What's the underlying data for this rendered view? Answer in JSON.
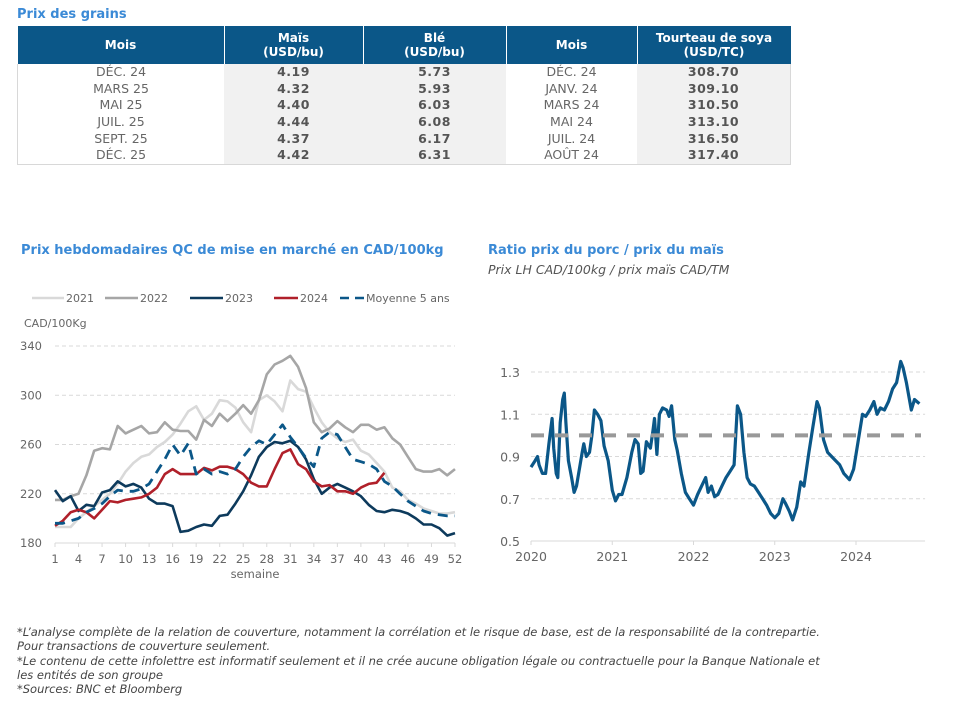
{
  "grains": {
    "title": "Prix des grains",
    "headers": [
      "Mois",
      "Maïs\n(USD/bu)",
      "Blé\n(USD/bu)",
      "Mois",
      "Tourteau de soya\n(USD/TC)"
    ],
    "header_lines": [
      [
        "Mois"
      ],
      [
        "Maïs",
        "(USD/bu)"
      ],
      [
        "Blé",
        "(USD/bu)"
      ],
      [
        "Mois"
      ],
      [
        "Tourteau de soya",
        "(USD/TC)"
      ]
    ],
    "rows": [
      {
        "mois": "DÉC. 24",
        "mais": "4.19",
        "ble": "5.73",
        "mois2": "DÉC. 24",
        "soya": "308.70"
      },
      {
        "mois": "MARS 25",
        "mais": "4.32",
        "ble": "5.93",
        "mois2": "JANV. 24",
        "soya": "309.10"
      },
      {
        "mois": "MAI 25",
        "mais": "4.40",
        "ble": "6.03",
        "mois2": "MARS 24",
        "soya": "310.50"
      },
      {
        "mois": "JUIL. 25",
        "mais": "4.44",
        "ble": "6.08",
        "mois2": "MAI 24",
        "soya": "313.10"
      },
      {
        "mois": "SEPT. 25",
        "mais": "4.37",
        "ble": "6.17",
        "mois2": "JUIL. 24",
        "soya": "316.50"
      },
      {
        "mois": "DÉC. 25",
        "mais": "4.42",
        "ble": "6.31",
        "mois2": "AOÛT 24",
        "soya": "317.40"
      }
    ],
    "colors": {
      "header_bg": "#0b5788",
      "header_text": "#ffffff",
      "num_bg": "#f1f1f1"
    }
  },
  "chart_data": [
    {
      "type": "line",
      "title": "Prix hebdomadaires QC de mise en marché en CAD/100kg",
      "ylabel": "CAD/100Kg",
      "xlabel": "semaine",
      "ylim": [
        180,
        340
      ],
      "yticks": [
        180,
        220,
        260,
        300,
        340
      ],
      "xlim": [
        1,
        52
      ],
      "xticks": [
        1,
        4,
        7,
        10,
        13,
        16,
        19,
        22,
        25,
        28,
        31,
        34,
        37,
        40,
        43,
        46,
        49,
        52
      ],
      "grid": true,
      "legend": "top",
      "series": [
        {
          "name": "2021",
          "color": "#d9d9d9",
          "dash": false,
          "values": [
            193,
            193,
            193,
            200,
            205,
            210,
            215,
            220,
            228,
            238,
            245,
            250,
            252,
            258,
            262,
            268,
            277,
            287,
            291,
            280,
            285,
            296,
            295,
            290,
            278,
            270,
            296,
            300,
            295,
            287,
            312,
            305,
            303,
            290,
            278,
            270,
            265,
            262,
            264,
            255,
            252,
            245,
            238,
            225,
            222,
            215,
            212,
            208,
            206,
            204,
            204,
            205
          ]
        },
        {
          "name": "2022",
          "color": "#a6a6a6",
          "dash": false,
          "values": [
            215,
            215,
            218,
            220,
            235,
            255,
            257,
            256,
            275,
            269,
            272,
            275,
            269,
            270,
            278,
            272,
            271,
            271,
            264,
            280,
            275,
            285,
            279,
            285,
            292,
            285,
            296,
            317,
            325,
            328,
            332,
            323,
            306,
            278,
            270,
            273,
            279,
            274,
            270,
            276,
            276,
            272,
            274,
            265,
            260,
            250,
            240,
            238,
            238,
            240,
            235,
            240
          ]
        },
        {
          "name": "2023",
          "color": "#0d3a5c",
          "dash": false,
          "values": [
            223,
            214,
            218,
            206,
            211,
            210,
            221,
            223,
            230,
            226,
            228,
            225,
            216,
            212,
            212,
            210,
            189,
            190,
            193,
            195,
            194,
            202,
            203,
            212,
            222,
            235,
            250,
            258,
            262,
            261,
            263,
            258,
            248,
            232,
            220,
            225,
            228,
            225,
            222,
            218,
            211,
            206,
            205,
            207,
            206,
            204,
            200,
            195,
            195,
            192,
            186,
            188
          ]
        },
        {
          "name": "2024",
          "color": "#b0202a",
          "dash": false,
          "values": [
            194,
            198,
            205,
            207,
            205,
            200,
            207,
            214,
            213,
            215,
            216,
            217,
            220,
            225,
            236,
            240,
            236,
            236,
            236,
            241,
            239,
            242,
            242,
            240,
            236,
            229,
            226,
            226,
            240,
            253,
            256,
            244,
            240,
            230,
            226,
            227,
            222,
            222,
            220,
            225,
            228,
            229,
            237
          ]
        },
        {
          "name": "Moyenne 5 ans",
          "color": "#0b5788",
          "dash": true,
          "values": [
            196,
            196,
            198,
            200,
            205,
            208,
            212,
            218,
            223,
            222,
            222,
            224,
            228,
            238,
            248,
            260,
            251,
            261,
            236,
            240,
            236,
            238,
            236,
            240,
            250,
            258,
            263,
            260,
            268,
            276,
            266,
            258,
            249,
            242,
            265,
            270,
            268,
            258,
            248,
            246,
            244,
            240,
            230,
            226,
            220,
            214,
            210,
            206,
            204,
            203,
            202,
            202
          ]
        }
      ]
    },
    {
      "type": "line",
      "title": "Ratio prix du porc / prix du maïs",
      "subtitle": "Prix LH CAD/100kg / prix maïs CAD/TM",
      "ylim": [
        0.5,
        1.4
      ],
      "yticks": [
        0.5,
        0.7,
        0.9,
        1.1,
        1.3
      ],
      "xlim": [
        2020.0,
        2024.85
      ],
      "xticks": [
        2020,
        2021,
        2022,
        2023,
        2024
      ],
      "grid": true,
      "series": [
        {
          "name": "Ratio",
          "color": "#0b5788",
          "dash": false,
          "points": [
            [
              2020.0,
              0.85
            ],
            [
              2020.05,
              0.88
            ],
            [
              2020.08,
              0.9
            ],
            [
              2020.1,
              0.86
            ],
            [
              2020.14,
              0.82
            ],
            [
              2020.18,
              0.82
            ],
            [
              2020.22,
              0.96
            ],
            [
              2020.26,
              1.08
            ],
            [
              2020.28,
              0.94
            ],
            [
              2020.31,
              0.82
            ],
            [
              2020.33,
              0.8
            ],
            [
              2020.36,
              1.06
            ],
            [
              2020.39,
              1.17
            ],
            [
              2020.41,
              1.2
            ],
            [
              2020.43,
              1.06
            ],
            [
              2020.46,
              0.88
            ],
            [
              2020.5,
              0.8
            ],
            [
              2020.53,
              0.73
            ],
            [
              2020.56,
              0.76
            ],
            [
              2020.6,
              0.85
            ],
            [
              2020.63,
              0.92
            ],
            [
              2020.65,
              0.96
            ],
            [
              2020.68,
              0.9
            ],
            [
              2020.72,
              0.92
            ],
            [
              2020.75,
              1.0
            ],
            [
              2020.78,
              1.12
            ],
            [
              2020.82,
              1.1
            ],
            [
              2020.86,
              1.07
            ],
            [
              2020.9,
              0.95
            ],
            [
              2020.95,
              0.88
            ],
            [
              2021.0,
              0.74
            ],
            [
              2021.04,
              0.69
            ],
            [
              2021.08,
              0.72
            ],
            [
              2021.12,
              0.72
            ],
            [
              2021.18,
              0.8
            ],
            [
              2021.24,
              0.92
            ],
            [
              2021.28,
              0.98
            ],
            [
              2021.32,
              0.96
            ],
            [
              2021.35,
              0.82
            ],
            [
              2021.38,
              0.83
            ],
            [
              2021.42,
              0.97
            ],
            [
              2021.47,
              0.94
            ],
            [
              2021.5,
              1.02
            ],
            [
              2021.52,
              1.08
            ],
            [
              2021.55,
              0.91
            ],
            [
              2021.58,
              1.1
            ],
            [
              2021.62,
              1.13
            ],
            [
              2021.67,
              1.12
            ],
            [
              2021.7,
              1.09
            ],
            [
              2021.73,
              1.14
            ],
            [
              2021.77,
              0.98
            ],
            [
              2021.8,
              0.93
            ],
            [
              2021.85,
              0.82
            ],
            [
              2021.9,
              0.73
            ],
            [
              2021.95,
              0.7
            ],
            [
              2022.0,
              0.67
            ],
            [
              2022.05,
              0.72
            ],
            [
              2022.1,
              0.76
            ],
            [
              2022.15,
              0.8
            ],
            [
              2022.18,
              0.73
            ],
            [
              2022.22,
              0.76
            ],
            [
              2022.26,
              0.71
            ],
            [
              2022.3,
              0.72
            ],
            [
              2022.35,
              0.76
            ],
            [
              2022.4,
              0.8
            ],
            [
              2022.45,
              0.83
            ],
            [
              2022.5,
              0.86
            ],
            [
              2022.54,
              1.14
            ],
            [
              2022.58,
              1.1
            ],
            [
              2022.62,
              0.92
            ],
            [
              2022.66,
              0.8
            ],
            [
              2022.7,
              0.77
            ],
            [
              2022.75,
              0.76
            ],
            [
              2022.8,
              0.73
            ],
            [
              2022.85,
              0.7
            ],
            [
              2022.9,
              0.67
            ],
            [
              2022.95,
              0.63
            ],
            [
              2023.0,
              0.61
            ],
            [
              2023.05,
              0.63
            ],
            [
              2023.1,
              0.7
            ],
            [
              2023.13,
              0.68
            ],
            [
              2023.18,
              0.64
            ],
            [
              2023.22,
              0.6
            ],
            [
              2023.27,
              0.66
            ],
            [
              2023.32,
              0.78
            ],
            [
              2023.36,
              0.76
            ],
            [
              2023.42,
              0.92
            ],
            [
              2023.47,
              1.04
            ],
            [
              2023.52,
              1.16
            ],
            [
              2023.55,
              1.13
            ],
            [
              2023.6,
              0.98
            ],
            [
              2023.65,
              0.92
            ],
            [
              2023.7,
              0.9
            ],
            [
              2023.75,
              0.88
            ],
            [
              2023.8,
              0.86
            ],
            [
              2023.85,
              0.82
            ],
            [
              2023.92,
              0.79
            ],
            [
              2023.97,
              0.84
            ],
            [
              2024.03,
              0.98
            ],
            [
              2024.08,
              1.1
            ],
            [
              2024.12,
              1.09
            ],
            [
              2024.17,
              1.12
            ],
            [
              2024.22,
              1.16
            ],
            [
              2024.26,
              1.1
            ],
            [
              2024.3,
              1.13
            ],
            [
              2024.35,
              1.12
            ],
            [
              2024.4,
              1.16
            ],
            [
              2024.45,
              1.22
            ],
            [
              2024.5,
              1.25
            ],
            [
              2024.55,
              1.35
            ],
            [
              2024.58,
              1.32
            ],
            [
              2024.62,
              1.25
            ],
            [
              2024.68,
              1.12
            ],
            [
              2024.72,
              1.17
            ],
            [
              2024.78,
              1.15
            ]
          ]
        },
        {
          "name": "Référence 1.0",
          "color": "#999999",
          "dash": true,
          "points": [
            [
              2020.0,
              1.0
            ],
            [
              2024.8,
              1.0
            ]
          ]
        }
      ]
    }
  ],
  "footnotes": [
    "*L’analyse complète de la relation de couverture, notamment la corrélation et le risque de base, est de la responsabilité de la contrepartie.",
    "Pour transactions de couverture seulement.",
    "*Le contenu de cette infolettre est informatif seulement et il ne crée aucune obligation légale ou contractuelle pour la Banque Nationale et",
    "les entités de son groupe",
    "*Sources: BNC et Bloomberg"
  ]
}
